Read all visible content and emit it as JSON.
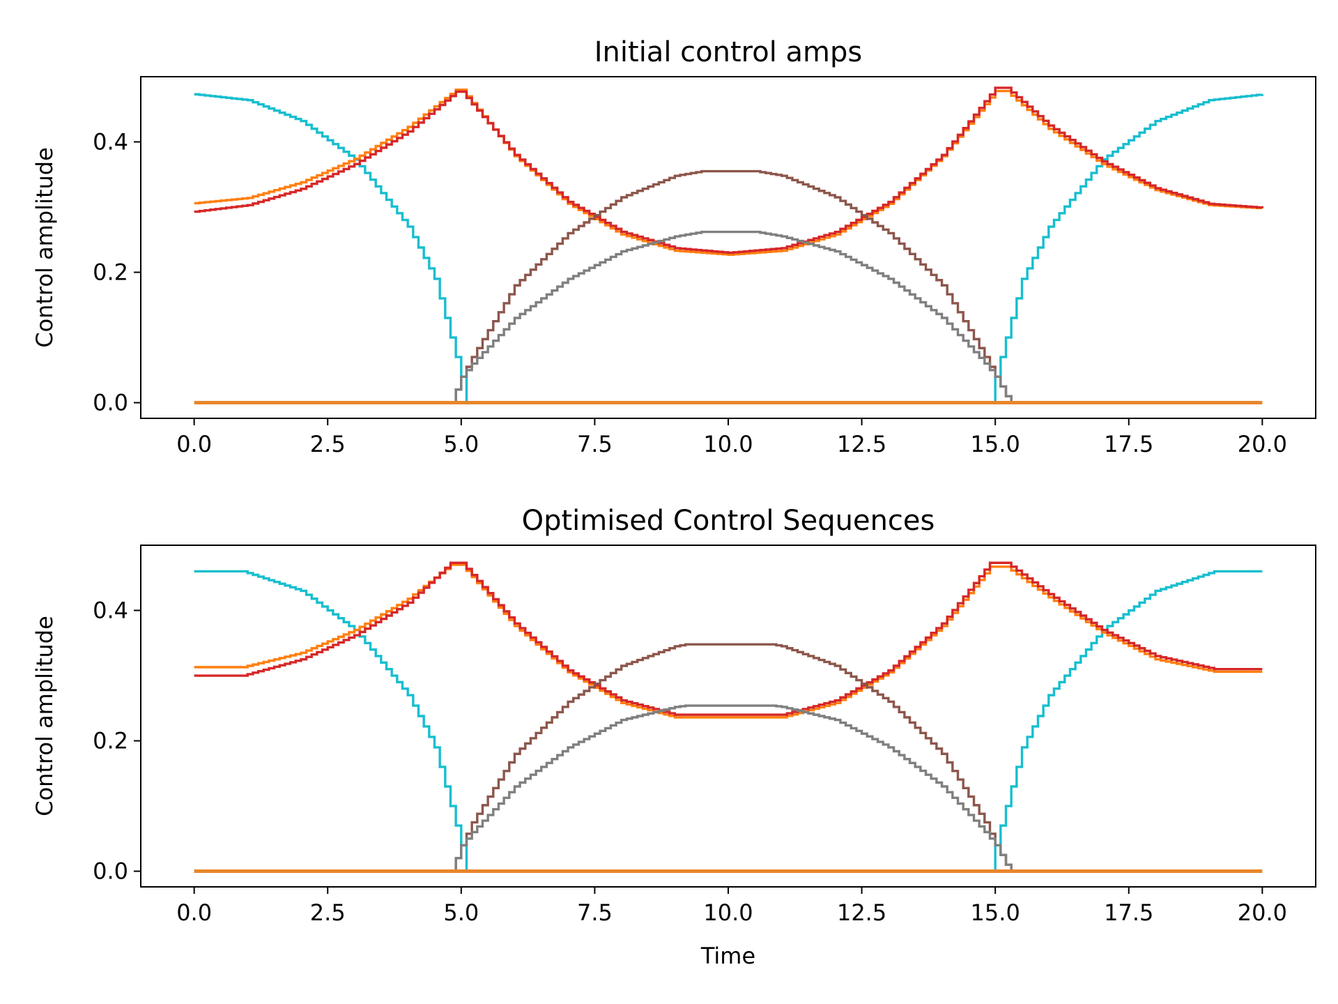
{
  "chart_data": [
    {
      "type": "line",
      "title": "Initial control amps",
      "xlabel": "",
      "ylabel": "Control amplitude",
      "xlim": [
        -1.0,
        21.0
      ],
      "ylim": [
        -0.024,
        0.5
      ],
      "xticks": [
        0.0,
        2.5,
        5.0,
        7.5,
        10.0,
        12.5,
        15.0,
        17.5,
        20.0
      ],
      "xtick_labels": [
        "0.0",
        "2.5",
        "5.0",
        "7.5",
        "10.0",
        "12.5",
        "15.0",
        "17.5",
        "20.0"
      ],
      "yticks": [
        0.0,
        0.2,
        0.4
      ],
      "ytick_labels": [
        "0.0",
        "0.2",
        "0.4"
      ],
      "grid": false,
      "drawstyle": "steps",
      "series": [
        {
          "color": "#17becf",
          "points": [
            [
              0,
              0.473
            ],
            [
              1,
              0.464
            ],
            [
              2,
              0.432
            ],
            [
              3,
              0.373
            ],
            [
              4,
              0.27
            ],
            [
              4.5,
              0.19
            ],
            [
              4.9,
              0.07
            ],
            [
              5.0,
              0.04
            ],
            [
              5.1,
              0.0
            ],
            [
              14.9,
              0.0
            ],
            [
              15.0,
              0.04
            ],
            [
              15.1,
              0.07
            ],
            [
              15.5,
              0.19
            ],
            [
              16,
              0.27
            ],
            [
              17,
              0.373
            ],
            [
              18,
              0.432
            ],
            [
              19,
              0.464
            ],
            [
              20,
              0.473
            ]
          ]
        },
        {
          "color": "#ff7f0e",
          "points": [
            [
              0,
              0.306
            ],
            [
              1,
              0.314
            ],
            [
              2,
              0.338
            ],
            [
              3,
              0.374
            ],
            [
              4,
              0.423
            ],
            [
              4.9,
              0.48
            ],
            [
              5.0,
              0.48
            ],
            [
              6,
              0.378
            ],
            [
              7,
              0.305
            ],
            [
              8,
              0.258
            ],
            [
              9,
              0.233
            ],
            [
              10,
              0.227
            ],
            [
              11,
              0.233
            ],
            [
              12,
              0.258
            ],
            [
              13,
              0.305
            ],
            [
              14,
              0.378
            ],
            [
              15,
              0.478
            ],
            [
              15.2,
              0.478
            ],
            [
              16,
              0.42
            ],
            [
              17,
              0.366
            ],
            [
              18,
              0.326
            ],
            [
              19,
              0.303
            ],
            [
              20,
              0.298
            ]
          ]
        },
        {
          "color": "#d62728",
          "points": [
            [
              0,
              0.293
            ],
            [
              1,
              0.303
            ],
            [
              2,
              0.328
            ],
            [
              3,
              0.366
            ],
            [
              4,
              0.416
            ],
            [
              4.9,
              0.477
            ],
            [
              5.0,
              0.477
            ],
            [
              6,
              0.38
            ],
            [
              7,
              0.308
            ],
            [
              8,
              0.262
            ],
            [
              9,
              0.237
            ],
            [
              10,
              0.23
            ],
            [
              11,
              0.237
            ],
            [
              12,
              0.262
            ],
            [
              13,
              0.308
            ],
            [
              14,
              0.38
            ],
            [
              15,
              0.483
            ],
            [
              15.2,
              0.483
            ],
            [
              16,
              0.425
            ],
            [
              17,
              0.37
            ],
            [
              18,
              0.329
            ],
            [
              19,
              0.305
            ],
            [
              20,
              0.299
            ]
          ]
        },
        {
          "color": "#8c564b",
          "points": [
            [
              4.8,
              0.0
            ],
            [
              4.9,
              0.02
            ],
            [
              5.0,
              0.04
            ],
            [
              5.2,
              0.07
            ],
            [
              6,
              0.18
            ],
            [
              7,
              0.26
            ],
            [
              8,
              0.315
            ],
            [
              9,
              0.348
            ],
            [
              9.5,
              0.355
            ],
            [
              10.5,
              0.355
            ],
            [
              11,
              0.348
            ],
            [
              12,
              0.315
            ],
            [
              13,
              0.26
            ],
            [
              14,
              0.18
            ],
            [
              14.8,
              0.07
            ],
            [
              15.0,
              0.04
            ],
            [
              15.2,
              0.01
            ],
            [
              15.3,
              0.0
            ]
          ]
        },
        {
          "color": "#7f7f7f",
          "points": [
            [
              4.8,
              0.0
            ],
            [
              4.9,
              0.02
            ],
            [
              5.0,
              0.04
            ],
            [
              5.2,
              0.06
            ],
            [
              6,
              0.13
            ],
            [
              7,
              0.19
            ],
            [
              8,
              0.232
            ],
            [
              9,
              0.255
            ],
            [
              9.5,
              0.262
            ],
            [
              10.5,
              0.262
            ],
            [
              11,
              0.255
            ],
            [
              12,
              0.232
            ],
            [
              13,
              0.19
            ],
            [
              14,
              0.13
            ],
            [
              14.8,
              0.06
            ],
            [
              15.0,
              0.04
            ],
            [
              15.2,
              0.01
            ],
            [
              15.3,
              0.0
            ]
          ]
        },
        {
          "color": "#e8862a",
          "points": [
            [
              0,
              0.0
            ],
            [
              20,
              0.0
            ]
          ]
        }
      ]
    },
    {
      "type": "line",
      "title": "Optimised Control Sequences",
      "xlabel": "Time",
      "ylabel": "Control amplitude",
      "xlim": [
        -1.0,
        21.0
      ],
      "ylim": [
        -0.024,
        0.5
      ],
      "xticks": [
        0.0,
        2.5,
        5.0,
        7.5,
        10.0,
        12.5,
        15.0,
        17.5,
        20.0
      ],
      "xtick_labels": [
        "0.0",
        "2.5",
        "5.0",
        "7.5",
        "10.0",
        "12.5",
        "15.0",
        "17.5",
        "20.0"
      ],
      "yticks": [
        0.0,
        0.2,
        0.4
      ],
      "ytick_labels": [
        "0.0",
        "0.2",
        "0.4"
      ],
      "grid": false,
      "drawstyle": "steps",
      "series": [
        {
          "color": "#17becf",
          "points": [
            [
              0,
              0.46
            ],
            [
              0.9,
              0.46
            ],
            [
              2,
              0.43
            ],
            [
              3,
              0.37
            ],
            [
              4,
              0.27
            ],
            [
              4.5,
              0.19
            ],
            [
              4.9,
              0.07
            ],
            [
              5.0,
              0.04
            ],
            [
              5.1,
              0.0
            ],
            [
              14.9,
              0.0
            ],
            [
              15.0,
              0.04
            ],
            [
              15.1,
              0.07
            ],
            [
              15.5,
              0.19
            ],
            [
              16,
              0.27
            ],
            [
              17,
              0.37
            ],
            [
              18,
              0.43
            ],
            [
              19.1,
              0.46
            ],
            [
              20,
              0.46
            ]
          ]
        },
        {
          "color": "#ff7f0e",
          "points": [
            [
              0,
              0.313
            ],
            [
              0.9,
              0.313
            ],
            [
              2,
              0.335
            ],
            [
              3,
              0.37
            ],
            [
              4,
              0.418
            ],
            [
              4.8,
              0.47
            ],
            [
              5.0,
              0.47
            ],
            [
              6,
              0.376
            ],
            [
              7,
              0.305
            ],
            [
              8,
              0.258
            ],
            [
              9,
              0.236
            ],
            [
              11,
              0.236
            ],
            [
              12,
              0.258
            ],
            [
              13,
              0.305
            ],
            [
              14,
              0.376
            ],
            [
              14.9,
              0.467
            ],
            [
              15.2,
              0.467
            ],
            [
              16,
              0.42
            ],
            [
              17,
              0.366
            ],
            [
              18,
              0.325
            ],
            [
              19.1,
              0.306
            ],
            [
              20,
              0.306
            ]
          ]
        },
        {
          "color": "#d62728",
          "points": [
            [
              0,
              0.3
            ],
            [
              0.9,
              0.3
            ],
            [
              2,
              0.325
            ],
            [
              3,
              0.362
            ],
            [
              4,
              0.412
            ],
            [
              4.8,
              0.473
            ],
            [
              5.0,
              0.473
            ],
            [
              6,
              0.38
            ],
            [
              7,
              0.308
            ],
            [
              8,
              0.262
            ],
            [
              9,
              0.24
            ],
            [
              11,
              0.24
            ],
            [
              12,
              0.262
            ],
            [
              13,
              0.308
            ],
            [
              14,
              0.38
            ],
            [
              14.9,
              0.473
            ],
            [
              15.2,
              0.473
            ],
            [
              16,
              0.425
            ],
            [
              17,
              0.37
            ],
            [
              18,
              0.33
            ],
            [
              19.1,
              0.31
            ],
            [
              20,
              0.31
            ]
          ]
        },
        {
          "color": "#8c564b",
          "points": [
            [
              4.8,
              0.0
            ],
            [
              4.9,
              0.02
            ],
            [
              5.0,
              0.04
            ],
            [
              5.2,
              0.075
            ],
            [
              6,
              0.18
            ],
            [
              7,
              0.26
            ],
            [
              8,
              0.315
            ],
            [
              9,
              0.345
            ],
            [
              9.2,
              0.348
            ],
            [
              10.8,
              0.348
            ],
            [
              11,
              0.345
            ],
            [
              12,
              0.315
            ],
            [
              13,
              0.26
            ],
            [
              14,
              0.18
            ],
            [
              14.8,
              0.075
            ],
            [
              15.0,
              0.04
            ],
            [
              15.2,
              0.01
            ],
            [
              15.3,
              0.0
            ]
          ]
        },
        {
          "color": "#7f7f7f",
          "points": [
            [
              4.8,
              0.0
            ],
            [
              4.9,
              0.02
            ],
            [
              5.0,
              0.04
            ],
            [
              5.2,
              0.06
            ],
            [
              6,
              0.13
            ],
            [
              7,
              0.19
            ],
            [
              8,
              0.232
            ],
            [
              9,
              0.252
            ],
            [
              9.2,
              0.254
            ],
            [
              10.8,
              0.254
            ],
            [
              11,
              0.252
            ],
            [
              12,
              0.232
            ],
            [
              13,
              0.19
            ],
            [
              14,
              0.13
            ],
            [
              14.8,
              0.06
            ],
            [
              15.0,
              0.04
            ],
            [
              15.2,
              0.01
            ],
            [
              15.3,
              0.0
            ]
          ]
        },
        {
          "color": "#e8862a",
          "points": [
            [
              0,
              0.0
            ],
            [
              20,
              0.0
            ]
          ]
        }
      ]
    }
  ]
}
